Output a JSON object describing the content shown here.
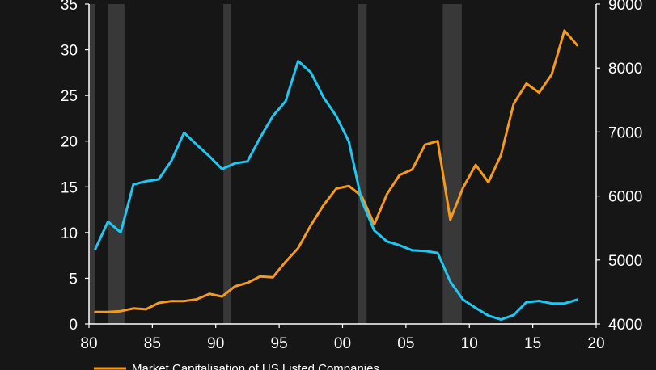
{
  "chart_data": {
    "type": "line",
    "title": "",
    "x_range": [
      1980,
      2020
    ],
    "x_ticks": [
      1980,
      1985,
      1990,
      1995,
      2000,
      2005,
      2010,
      2015,
      2020
    ],
    "x_tick_labels": [
      "80",
      "85",
      "90",
      "95",
      "00",
      "05",
      "10",
      "15",
      "20"
    ],
    "y_left_range": [
      0,
      35
    ],
    "y_left_ticks": [
      "0",
      "5",
      "10",
      "15",
      "20",
      "25",
      "30",
      "35"
    ],
    "y_right_range": [
      4000,
      9000
    ],
    "y_right_ticks": [
      "4000",
      "5000",
      "6000",
      "7000",
      "8000",
      "9000"
    ],
    "recession_bands": [
      [
        1980.0,
        1980.5
      ],
      [
        1981.5,
        1982.8
      ],
      [
        1990.6,
        1991.2
      ],
      [
        2001.2,
        2001.9
      ],
      [
        2007.9,
        2009.4
      ]
    ],
    "colors": {
      "background": "#161616",
      "orange_series": "#f59a1a",
      "blue_series": "#1fc8f2",
      "bands": "#383838"
    },
    "legend": [
      {
        "label": "Market Capitalisation of US Listed Companies",
        "color": "#f59a1a"
      }
    ],
    "series": [
      {
        "name": "Market Capitalisation of US Listed Companies",
        "axis": "left",
        "color": "#f59a1a",
        "x": [
          1980.5,
          1981.5,
          1982.5,
          1983.5,
          1984.5,
          1985.5,
          1986.5,
          1987.5,
          1988.5,
          1989.5,
          1990.5,
          1991.5,
          1992.5,
          1993.5,
          1994.5,
          1995.5,
          1996.5,
          1997.5,
          1998.5,
          1999.5,
          2000.5,
          2001.5,
          2002.5,
          2003.5,
          2004.5,
          2005.5,
          2006.5,
          2007.5,
          2008.5,
          2009.5,
          2010.5,
          2011.5,
          2012.5,
          2013.5,
          2014.5,
          2015.5,
          2016.5,
          2017.5,
          2018.5
        ],
        "values": [
          1.3,
          1.3,
          1.4,
          1.7,
          1.6,
          2.3,
          2.5,
          2.5,
          2.7,
          3.3,
          3.0,
          4.1,
          4.5,
          5.2,
          5.1,
          6.8,
          8.3,
          10.8,
          13.0,
          14.8,
          15.1,
          14.0,
          10.9,
          14.2,
          16.3,
          16.9,
          19.6,
          20.0,
          11.4,
          14.9,
          17.4,
          15.5,
          18.5,
          24.1,
          26.3,
          25.3,
          27.3,
          32.1,
          30.5
        ]
      },
      {
        "axis": "right",
        "color": "#1fc8f2",
        "x": [
          1980.5,
          1981.5,
          1982.5,
          1983.5,
          1984.5,
          1985.5,
          1986.5,
          1987.5,
          1988.5,
          1989.5,
          1990.5,
          1991.5,
          1992.5,
          1993.5,
          1994.5,
          1995.5,
          1996.5,
          1997.5,
          1998.5,
          1999.5,
          2000.5,
          2001.5,
          2002.5,
          2003.5,
          2004.5,
          2005.5,
          2006.5,
          2007.5,
          2008.5,
          2009.5,
          2010.5,
          2011.5,
          2012.5,
          2013.5,
          2014.5,
          2015.5,
          2016.5,
          2017.5,
          2018.5
        ],
        "values": [
          5170,
          5600,
          5430,
          6180,
          6230,
          6260,
          6550,
          6990,
          6800,
          6620,
          6420,
          6510,
          6540,
          6910,
          7250,
          7480,
          8110,
          7930,
          7540,
          7250,
          6850,
          5930,
          5460,
          5290,
          5230,
          5150,
          5140,
          5110,
          4660,
          4380,
          4250,
          4130,
          4070,
          4140,
          4340,
          4360,
          4320,
          4320,
          4380
        ]
      }
    ]
  }
}
